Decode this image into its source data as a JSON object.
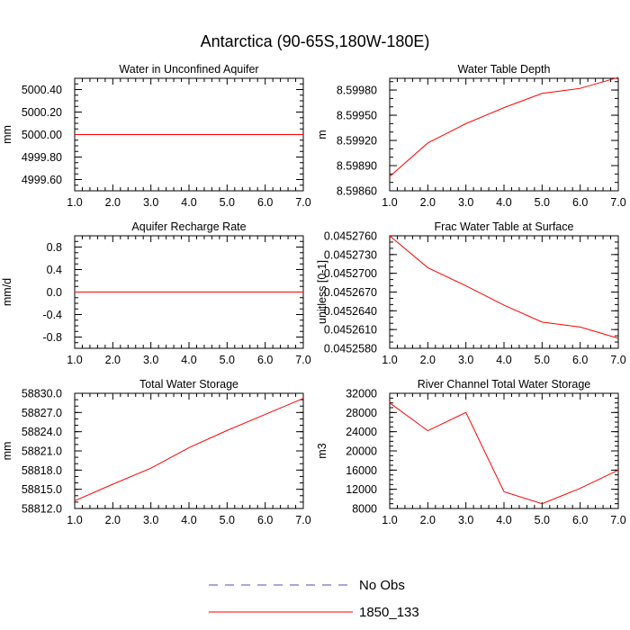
{
  "figure": {
    "title": "Antarctica (90-65S,180W-180E)",
    "legend": [
      {
        "label": "No Obs",
        "color": "#5050b4",
        "dash": "dashed"
      },
      {
        "label": "1850_133",
        "color": "#ff0000",
        "dash": "solid"
      }
    ]
  },
  "chart_data": [
    {
      "type": "line",
      "title": "Water in Unconfined Aquifer",
      "ylabel": "mm",
      "xlim": [
        1,
        7
      ],
      "ylim": [
        4999.5,
        5000.5
      ],
      "xticks": [
        1,
        2,
        3,
        4,
        5,
        6,
        7
      ],
      "xtick_labels": [
        "1.0",
        "2.0",
        "3.0",
        "4.0",
        "5.0",
        "6.0",
        "7.0"
      ],
      "yticks": [
        4999.6,
        4999.8,
        5000.0,
        5000.2,
        5000.4
      ],
      "ytick_labels": [
        "4999.60",
        "4999.80",
        "5000.00",
        "5000.20",
        "5000.40"
      ],
      "yminor": 0.05,
      "series": [
        {
          "name": "1850_133",
          "color": "#ff0000",
          "x": [
            1,
            2,
            3,
            4,
            5,
            6,
            7
          ],
          "y": [
            5000,
            5000,
            5000,
            5000,
            5000,
            5000,
            5000
          ]
        }
      ]
    },
    {
      "type": "line",
      "title": "Water Table Depth",
      "ylabel": "m",
      "xlim": [
        1,
        7
      ],
      "ylim": [
        8.5986,
        8.59994
      ],
      "xticks": [
        1,
        2,
        3,
        4,
        5,
        6,
        7
      ],
      "xtick_labels": [
        "1.0",
        "2.0",
        "3.0",
        "4.0",
        "5.0",
        "6.0",
        "7.0"
      ],
      "yticks": [
        8.5986,
        8.5989,
        8.5992,
        8.5995,
        8.5998
      ],
      "ytick_labels": [
        "8.59860",
        "8.59890",
        "8.59920",
        "8.59950",
        "8.59980"
      ],
      "yminor": 0.0001,
      "series": [
        {
          "name": "1850_133",
          "color": "#ff0000",
          "x": [
            1,
            2,
            3,
            4,
            5,
            6,
            7
          ],
          "y": [
            8.59877,
            8.59917,
            8.5994,
            8.59959,
            8.59976,
            8.59982,
            8.59995
          ]
        }
      ]
    },
    {
      "type": "line",
      "title": "Aquifer Recharge Rate",
      "ylabel": "mm/d",
      "xlim": [
        1,
        7
      ],
      "ylim": [
        -1.0,
        1.0
      ],
      "xticks": [
        1,
        2,
        3,
        4,
        5,
        6,
        7
      ],
      "xtick_labels": [
        "1.0",
        "2.0",
        "3.0",
        "4.0",
        "5.0",
        "6.0",
        "7.0"
      ],
      "yticks": [
        -0.8,
        -0.4,
        0.0,
        0.4,
        0.8
      ],
      "ytick_labels": [
        "-0.8",
        "-0.4",
        "0.0",
        "0.4",
        "0.8"
      ],
      "yminor": 0.1,
      "series": [
        {
          "name": "1850_133",
          "color": "#ff0000",
          "x": [
            1,
            2,
            3,
            4,
            5,
            6,
            7
          ],
          "y": [
            0,
            0,
            0,
            0,
            0,
            0,
            0
          ]
        }
      ]
    },
    {
      "type": "line",
      "title": "Frac Water Table at Surface",
      "ylabel": "unitless [0-1]",
      "xlim": [
        1,
        7
      ],
      "ylim": [
        0.045258,
        0.045276
      ],
      "xticks": [
        1,
        2,
        3,
        4,
        5,
        6,
        7
      ],
      "xtick_labels": [
        "1.0",
        "2.0",
        "3.0",
        "4.0",
        "5.0",
        "6.0",
        "7.0"
      ],
      "yticks": [
        0.045258,
        0.045261,
        0.045264,
        0.045267,
        0.04527,
        0.045273,
        0.045276
      ],
      "ytick_labels": [
        "0.0452580",
        "0.0452610",
        "0.0452640",
        "0.0452670",
        "0.0452700",
        "0.0452730",
        "0.0452760"
      ],
      "yminor": 1e-06,
      "series": [
        {
          "name": "1850_133",
          "color": "#ff0000",
          "x": [
            1,
            2,
            3,
            4,
            5,
            6,
            7
          ],
          "y": [
            0.045276,
            0.0452709,
            0.045268,
            0.0452649,
            0.0452622,
            0.0452614,
            0.0452596
          ]
        }
      ]
    },
    {
      "type": "line",
      "title": "Total Water Storage",
      "ylabel": "mm",
      "xlim": [
        1,
        7
      ],
      "ylim": [
        58812,
        58830
      ],
      "xticks": [
        1,
        2,
        3,
        4,
        5,
        6,
        7
      ],
      "xtick_labels": [
        "1.0",
        "2.0",
        "3.0",
        "4.0",
        "5.0",
        "6.0",
        "7.0"
      ],
      "yticks": [
        58812,
        58815,
        58818,
        58821,
        58824,
        58827,
        58830
      ],
      "ytick_labels": [
        "58812.0",
        "58815.0",
        "58818.0",
        "58821.0",
        "58824.0",
        "58827.0",
        "58830.0"
      ],
      "yminor": 1,
      "series": [
        {
          "name": "1850_133",
          "color": "#ff0000",
          "x": [
            1,
            2,
            3,
            4,
            5,
            6,
            7
          ],
          "y": [
            58813.2,
            58815.8,
            58818.3,
            58821.5,
            58824.2,
            58826.7,
            58829.2
          ]
        }
      ]
    },
    {
      "type": "line",
      "title": "River Channel Total Water Storage",
      "ylabel": "m3",
      "xlim": [
        1,
        7
      ],
      "ylim": [
        8000,
        32000
      ],
      "xticks": [
        1,
        2,
        3,
        4,
        5,
        6,
        7
      ],
      "xtick_labels": [
        "1.0",
        "2.0",
        "3.0",
        "4.0",
        "5.0",
        "6.0",
        "7.0"
      ],
      "yticks": [
        8000,
        12000,
        16000,
        20000,
        24000,
        28000,
        32000
      ],
      "ytick_labels": [
        "8000",
        "12000",
        "16000",
        "20000",
        "24000",
        "28000",
        "32000"
      ],
      "yminor": 1000,
      "series": [
        {
          "name": "1850_133",
          "color": "#ff0000",
          "x": [
            1,
            2,
            3,
            4,
            5,
            6,
            7
          ],
          "y": [
            30000,
            24200,
            28000,
            11500,
            9000,
            12200,
            16000
          ]
        }
      ]
    }
  ]
}
